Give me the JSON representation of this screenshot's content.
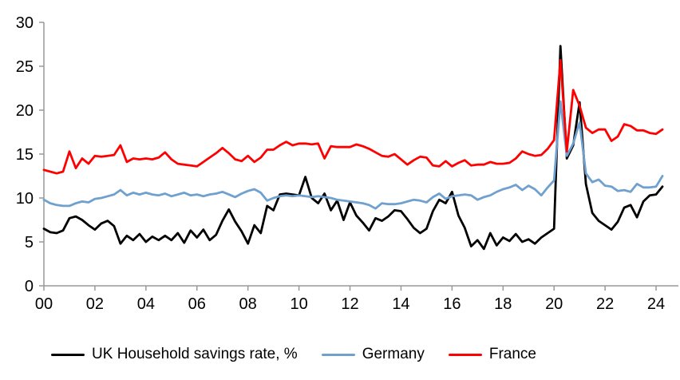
{
  "chart_data": {
    "type": "line",
    "title": "",
    "xlabel": "",
    "ylabel": "",
    "grid": false,
    "legend_position": "bottom",
    "axis_color": "#999999",
    "ylim": [
      0,
      30
    ],
    "y_ticks": [
      0,
      5,
      10,
      15,
      20,
      25,
      30
    ],
    "x_tick_years": [
      2000,
      2002,
      2004,
      2006,
      2008,
      2010,
      2012,
      2014,
      2016,
      2018,
      2020,
      2022,
      2024
    ],
    "x_tick_labels": [
      "00",
      "02",
      "04",
      "06",
      "08",
      "10",
      "12",
      "14",
      "16",
      "18",
      "20",
      "22",
      "24"
    ],
    "x_unit": "year (quarterly observations)",
    "x": [
      2000.0,
      2000.25,
      2000.5,
      2000.75,
      2001.0,
      2001.25,
      2001.5,
      2001.75,
      2002.0,
      2002.25,
      2002.5,
      2002.75,
      2003.0,
      2003.25,
      2003.5,
      2003.75,
      2004.0,
      2004.25,
      2004.5,
      2004.75,
      2005.0,
      2005.25,
      2005.5,
      2005.75,
      2006.0,
      2006.25,
      2006.5,
      2006.75,
      2007.0,
      2007.25,
      2007.5,
      2007.75,
      2008.0,
      2008.25,
      2008.5,
      2008.75,
      2009.0,
      2009.25,
      2009.5,
      2009.75,
      2010.0,
      2010.25,
      2010.5,
      2010.75,
      2011.0,
      2011.25,
      2011.5,
      2011.75,
      2012.0,
      2012.25,
      2012.5,
      2012.75,
      2013.0,
      2013.25,
      2013.5,
      2013.75,
      2014.0,
      2014.25,
      2014.5,
      2014.75,
      2015.0,
      2015.25,
      2015.5,
      2015.75,
      2016.0,
      2016.25,
      2016.5,
      2016.75,
      2017.0,
      2017.25,
      2017.5,
      2017.75,
      2018.0,
      2018.25,
      2018.5,
      2018.75,
      2019.0,
      2019.25,
      2019.5,
      2019.75,
      2020.0,
      2020.25,
      2020.5,
      2020.75,
      2021.0,
      2021.25,
      2021.5,
      2021.75,
      2022.0,
      2022.25,
      2022.5,
      2022.75,
      2023.0,
      2023.25,
      2023.5,
      2023.75,
      2024.0,
      2024.25
    ],
    "series": [
      {
        "name": "UK Household savings rate, %",
        "color": "#000000",
        "values": [
          6.5,
          6.1,
          6.0,
          6.3,
          7.7,
          7.9,
          7.5,
          6.9,
          6.4,
          7.1,
          7.4,
          6.8,
          4.8,
          5.7,
          5.2,
          5.9,
          5.0,
          5.6,
          5.2,
          5.7,
          5.2,
          6.0,
          4.9,
          6.3,
          5.5,
          6.4,
          5.2,
          5.8,
          7.4,
          8.7,
          7.3,
          6.2,
          4.8,
          6.9,
          6.0,
          9.1,
          8.6,
          10.4,
          10.5,
          10.4,
          10.3,
          12.4,
          10.0,
          9.4,
          10.5,
          8.6,
          9.7,
          7.5,
          9.5,
          8.0,
          7.2,
          6.3,
          7.7,
          7.4,
          7.9,
          8.6,
          8.5,
          7.6,
          6.6,
          6.0,
          6.5,
          8.5,
          9.8,
          9.4,
          10.7,
          8.0,
          6.6,
          4.5,
          5.2,
          4.2,
          6.0,
          4.6,
          5.5,
          5.1,
          5.9,
          5.0,
          5.3,
          4.8,
          5.5,
          6.0,
          6.5,
          27.3,
          14.5,
          16.0,
          20.9,
          11.6,
          8.3,
          7.4,
          6.9,
          6.4,
          7.3,
          8.9,
          9.2,
          7.8,
          9.6,
          10.3,
          10.4,
          11.3
        ]
      },
      {
        "name": "Germany",
        "color": "#6FA0CE",
        "values": [
          9.8,
          9.4,
          9.2,
          9.1,
          9.1,
          9.4,
          9.6,
          9.5,
          9.9,
          10.0,
          10.2,
          10.4,
          10.9,
          10.3,
          10.6,
          10.4,
          10.6,
          10.4,
          10.3,
          10.5,
          10.2,
          10.4,
          10.6,
          10.3,
          10.4,
          10.2,
          10.4,
          10.5,
          10.7,
          10.4,
          10.1,
          10.5,
          10.8,
          11.0,
          10.6,
          9.7,
          10.0,
          10.2,
          10.3,
          10.2,
          10.3,
          10.2,
          10.1,
          10.2,
          10.1,
          10.0,
          9.8,
          9.7,
          9.6,
          9.5,
          9.4,
          9.2,
          8.8,
          9.4,
          9.3,
          9.3,
          9.4,
          9.6,
          9.8,
          9.7,
          9.5,
          10.1,
          10.5,
          9.9,
          10.2,
          10.3,
          10.4,
          10.3,
          9.8,
          10.1,
          10.3,
          10.7,
          11.0,
          11.2,
          11.5,
          10.9,
          11.4,
          11.0,
          10.3,
          11.2,
          12.0,
          21.0,
          14.8,
          16.2,
          18.6,
          12.8,
          11.8,
          12.1,
          11.4,
          11.3,
          10.8,
          10.9,
          10.7,
          11.6,
          11.2,
          11.2,
          11.3,
          12.5
        ]
      },
      {
        "name": "France",
        "color": "#FF0000",
        "values": [
          13.2,
          13.0,
          12.8,
          13.0,
          15.3,
          13.4,
          14.5,
          13.9,
          14.8,
          14.7,
          14.8,
          14.9,
          16.0,
          14.1,
          14.5,
          14.4,
          14.5,
          14.4,
          14.6,
          15.2,
          14.4,
          13.9,
          13.8,
          13.7,
          13.6,
          14.1,
          14.6,
          15.1,
          15.7,
          15.1,
          14.4,
          14.2,
          14.8,
          14.1,
          14.6,
          15.5,
          15.5,
          16.0,
          16.4,
          16.0,
          16.2,
          16.2,
          16.1,
          16.2,
          14.5,
          15.9,
          15.8,
          15.8,
          15.8,
          16.1,
          15.9,
          15.6,
          15.2,
          14.8,
          14.7,
          15.0,
          14.4,
          13.8,
          14.3,
          14.7,
          14.6,
          13.7,
          13.6,
          14.2,
          13.6,
          14.0,
          14.3,
          13.7,
          13.8,
          13.8,
          14.1,
          13.9,
          13.9,
          14.0,
          14.5,
          15.3,
          15.0,
          14.8,
          14.9,
          15.6,
          16.6,
          25.7,
          15.3,
          22.3,
          20.5,
          18.0,
          17.4,
          17.8,
          17.8,
          16.5,
          17.0,
          18.4,
          18.2,
          17.7,
          17.7,
          17.4,
          17.3,
          17.8
        ]
      }
    ]
  }
}
